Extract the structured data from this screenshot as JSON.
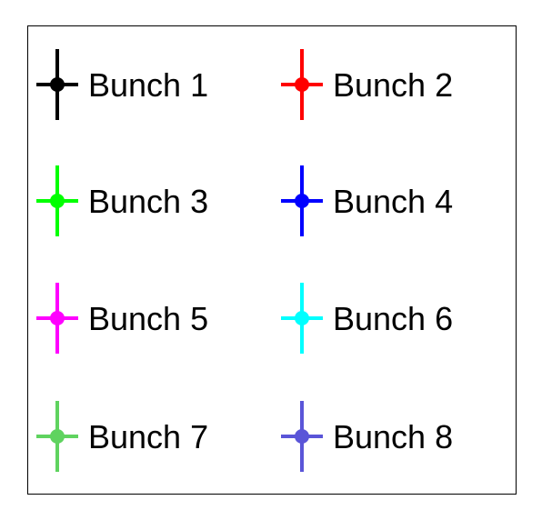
{
  "chart_data": {
    "type": "legend",
    "grid": false,
    "layout": "2-column",
    "entries": [
      {
        "label": "Bunch 1",
        "color": "#000000",
        "marker": "circle-with-errorbars"
      },
      {
        "label": "Bunch 2",
        "color": "#ff0000",
        "marker": "circle-with-errorbars"
      },
      {
        "label": "Bunch 3",
        "color": "#00ff00",
        "marker": "circle-with-errorbars"
      },
      {
        "label": "Bunch 4",
        "color": "#0000ff",
        "marker": "circle-with-errorbars"
      },
      {
        "label": "Bunch 5",
        "color": "#ff00ff",
        "marker": "circle-with-errorbars"
      },
      {
        "label": "Bunch 6",
        "color": "#00ffff",
        "marker": "circle-with-errorbars"
      },
      {
        "label": "Bunch 7",
        "color": "#5fd35f",
        "marker": "circle-with-errorbars"
      },
      {
        "label": "Bunch 8",
        "color": "#5a55d8",
        "marker": "circle-with-errorbars"
      }
    ]
  }
}
